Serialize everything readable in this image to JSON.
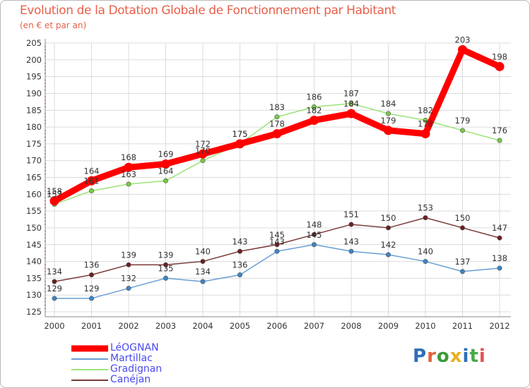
{
  "chart_data": {
    "type": "line",
    "title": "Evolution de la Dotation Globale de Fonctionnement par Habitant",
    "subtitle": "(en € et par an)",
    "xlabel": "",
    "ylabel": "",
    "ylim": [
      125,
      205
    ],
    "yticks": [
      125,
      130,
      135,
      140,
      145,
      150,
      155,
      160,
      165,
      170,
      175,
      180,
      185,
      190,
      195,
      200,
      205
    ],
    "categories": [
      "2000",
      "2001",
      "2002",
      "2003",
      "2004",
      "2005",
      "2006",
      "2007",
      "2008",
      "2009",
      "2010",
      "2011",
      "2012"
    ],
    "grid": true,
    "legend_position": "bottom-left",
    "series": [
      {
        "name": "LéOGNAN",
        "color": "#ff0000",
        "marker_color": "#ff0000",
        "values": [
          158,
          164,
          168,
          169,
          172,
          175,
          178,
          182,
          184,
          179,
          178,
          203,
          198
        ]
      },
      {
        "name": "Martillac",
        "color": "#6a9fd4",
        "marker_color": "#3d85c6",
        "values": [
          129,
          129,
          132,
          135,
          134,
          136,
          143,
          145,
          143,
          142,
          140,
          137,
          138
        ]
      },
      {
        "name": "Gradignan",
        "color": "#9be37a",
        "marker_color": "#7ac943",
        "values": [
          157,
          161,
          163,
          164,
          170,
          175,
          183,
          186,
          187,
          184,
          182,
          179,
          176
        ]
      },
      {
        "name": "Canéjan",
        "color": "#7a3a3a",
        "marker_color": "#6b1f1f",
        "values": [
          134,
          136,
          139,
          139,
          140,
          143,
          145,
          148,
          151,
          150,
          153,
          150,
          147
        ]
      }
    ]
  },
  "logo": {
    "text": "Proxiti",
    "colors": [
      "#2f6fb6",
      "#e8603a",
      "#3a9a3a",
      "#e8b020",
      "#2f6fb6",
      "#4aa84a",
      "#e85050"
    ]
  }
}
